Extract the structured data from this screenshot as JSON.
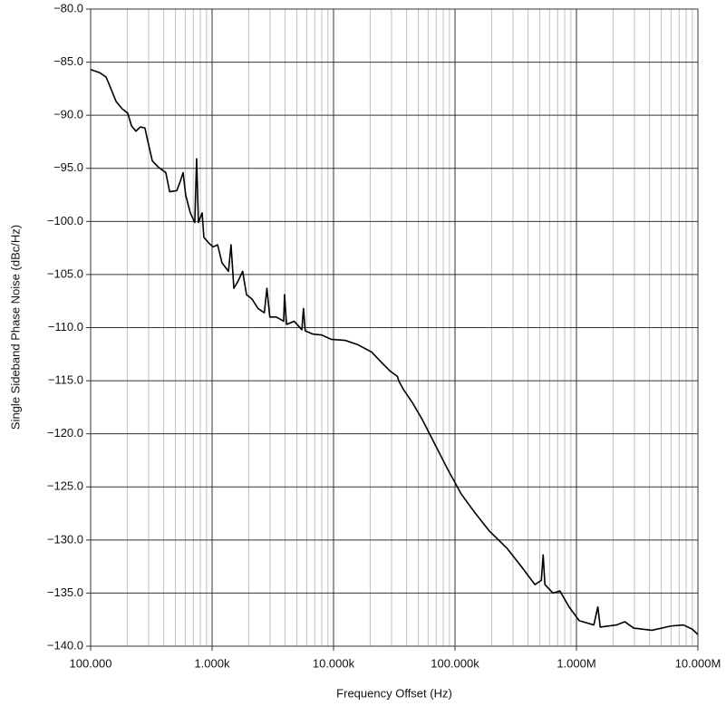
{
  "chart_data": {
    "type": "line",
    "x_label": "Frequency Offset (Hz)",
    "y_label": "Single Sideband Phase Noise (dBc/Hz)",
    "xscale": "log",
    "grid": true,
    "color": "#000000",
    "xlim": [
      100,
      10000000
    ],
    "ylim": [
      -140,
      -80
    ],
    "xticks": [
      {
        "value": 100,
        "label": "100.000"
      },
      {
        "value": 1000,
        "label": "1.000k"
      },
      {
        "value": 10000,
        "label": "10.000k"
      },
      {
        "value": 100000,
        "label": "100.000k"
      },
      {
        "value": 1000000,
        "label": "1.000M"
      },
      {
        "value": 10000000,
        "label": "10.000M"
      }
    ],
    "yticks": [
      {
        "value": -80,
        "label": "−80.0"
      },
      {
        "value": -85,
        "label": "−85.0"
      },
      {
        "value": -90,
        "label": "−90.0"
      },
      {
        "value": -95,
        "label": "−95.0"
      },
      {
        "value": -100,
        "label": "−100.0"
      },
      {
        "value": -105,
        "label": "−105.0"
      },
      {
        "value": -110,
        "label": "−110.0"
      },
      {
        "value": -115,
        "label": "−115.0"
      },
      {
        "value": -120,
        "label": "−120.0"
      },
      {
        "value": -125,
        "label": "−125.0"
      },
      {
        "value": -130,
        "label": "−130.0"
      },
      {
        "value": -135,
        "label": "−135.0"
      },
      {
        "value": -140,
        "label": "−140.0"
      }
    ],
    "x": [
      100,
      119,
      134,
      141,
      162,
      182,
      202,
      217,
      236,
      257,
      280,
      295,
      322,
      362,
      416,
      447,
      512,
      548,
      577,
      606,
      662,
      720,
      746,
      772,
      828,
      856,
      934,
      1017,
      1110,
      1207,
      1365,
      1432,
      1511,
      1640,
      1785,
      1920,
      2128,
      2391,
      2692,
      2828,
      2988,
      3378,
      3885,
      3950,
      4102,
      4736,
      5483,
      5655,
      5843,
      6720,
      8012,
      9552,
      12470,
      15800,
      20590,
      24940,
      29280,
      33600,
      34400,
      37540,
      44770,
      53430,
      68450,
      87590,
      113000,
      145200,
      190000,
      269000,
      352000,
      455000,
      514000,
      532000,
      550000,
      642000,
      731000,
      869000,
      1054000,
      1390000,
      1500000,
      1570000,
      2140000,
      2500000,
      2962000,
      4184000,
      6000000,
      7600000,
      9000000,
      10000000
    ],
    "values": [
      -85.7,
      -86.0,
      -86.4,
      -87.0,
      -88.7,
      -89.4,
      -89.8,
      -91.0,
      -91.5,
      -91.1,
      -91.2,
      -92.4,
      -94.3,
      -94.9,
      -95.4,
      -97.2,
      -97.1,
      -96.2,
      -95.4,
      -97.5,
      -99.2,
      -100.1,
      -94.1,
      -100.1,
      -99.2,
      -101.5,
      -102.0,
      -102.4,
      -102.2,
      -103.9,
      -104.7,
      -102.2,
      -106.3,
      -105.6,
      -104.7,
      -106.9,
      -107.3,
      -108.2,
      -108.6,
      -106.3,
      -109.0,
      -109.0,
      -109.4,
      -106.9,
      -109.7,
      -109.4,
      -110.2,
      -108.2,
      -110.3,
      -110.6,
      -110.7,
      -111.1,
      -111.2,
      -111.6,
      -112.3,
      -113.3,
      -114.1,
      -114.6,
      -115.0,
      -115.8,
      -117.1,
      -118.6,
      -121.0,
      -123.4,
      -125.7,
      -127.4,
      -129.1,
      -130.8,
      -132.5,
      -134.2,
      -133.8,
      -131.4,
      -134.2,
      -135.0,
      -134.8,
      -136.3,
      -137.6,
      -138.0,
      -136.3,
      -138.2,
      -138.0,
      -137.7,
      -138.3,
      -138.5,
      -138.1,
      -138.0,
      -138.4,
      -138.9
    ]
  }
}
